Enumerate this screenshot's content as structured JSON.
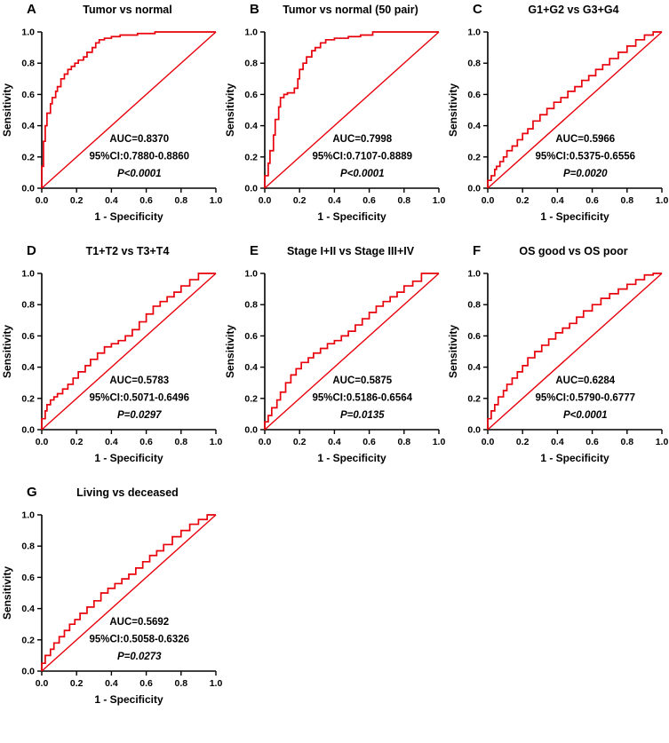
{
  "figure": {
    "name": "ROC curve figure, panels A-G",
    "style": {
      "curve_color": "#e8000b",
      "reference_color": "#e8000b",
      "axis_color": "#000000",
      "text_color": "#000000",
      "background": "#ffffff"
    },
    "axis": {
      "ticks": [
        "0.0",
        "0.2",
        "0.4",
        "0.6",
        "0.8",
        "1.0"
      ],
      "xlabel": "1 - Specificity",
      "ylabel": "Sensitivity",
      "xlim": [
        0,
        1
      ],
      "ylim": [
        0,
        1
      ],
      "grid": false
    }
  },
  "chart_data": [
    {
      "type": "line",
      "panel": "A",
      "title": "Tumor vs normal",
      "xlabel": "1 - Specificity",
      "ylabel": "Sensitivity",
      "xlim": [
        0,
        1
      ],
      "ylim": [
        0,
        1
      ],
      "annotations": {
        "auc": "AUC=0.8370",
        "ci": "95%CI:0.7880-0.8860",
        "p": "P<0.0001"
      },
      "series": [
        {
          "name": "ROC",
          "points": [
            [
              0,
              0
            ],
            [
              0.01,
              0.14
            ],
            [
              0.02,
              0.3
            ],
            [
              0.03,
              0.4
            ],
            [
              0.05,
              0.48
            ],
            [
              0.06,
              0.54
            ],
            [
              0.08,
              0.58
            ],
            [
              0.09,
              0.62
            ],
            [
              0.11,
              0.65
            ],
            [
              0.13,
              0.7
            ],
            [
              0.15,
              0.73
            ],
            [
              0.17,
              0.76
            ],
            [
              0.19,
              0.78
            ],
            [
              0.21,
              0.8
            ],
            [
              0.24,
              0.82
            ],
            [
              0.26,
              0.84
            ],
            [
              0.29,
              0.87
            ],
            [
              0.31,
              0.9
            ],
            [
              0.33,
              0.93
            ],
            [
              0.36,
              0.95
            ],
            [
              0.4,
              0.96
            ],
            [
              0.45,
              0.97
            ],
            [
              0.55,
              0.98
            ],
            [
              0.65,
              0.99
            ],
            [
              0.75,
              1
            ],
            [
              1,
              1
            ]
          ]
        },
        {
          "name": "reference",
          "points": [
            [
              0,
              0
            ],
            [
              1,
              1
            ]
          ]
        }
      ]
    },
    {
      "type": "line",
      "panel": "B",
      "title": "Tumor vs normal (50 pair)",
      "xlabel": "1 - Specificity",
      "ylabel": "Sensitivity",
      "xlim": [
        0,
        1
      ],
      "ylim": [
        0,
        1
      ],
      "annotations": {
        "auc": "AUC=0.7998",
        "ci": "95%CI:0.7107-0.8889",
        "p": "P<0.0001"
      },
      "series": [
        {
          "name": "ROC",
          "points": [
            [
              0,
              0
            ],
            [
              0.02,
              0.08
            ],
            [
              0.03,
              0.16
            ],
            [
              0.05,
              0.24
            ],
            [
              0.06,
              0.34
            ],
            [
              0.08,
              0.44
            ],
            [
              0.09,
              0.52
            ],
            [
              0.11,
              0.58
            ],
            [
              0.13,
              0.6
            ],
            [
              0.17,
              0.61
            ],
            [
              0.19,
              0.64
            ],
            [
              0.2,
              0.7
            ],
            [
              0.22,
              0.76
            ],
            [
              0.24,
              0.8
            ],
            [
              0.27,
              0.84
            ],
            [
              0.29,
              0.88
            ],
            [
              0.32,
              0.9
            ],
            [
              0.35,
              0.93
            ],
            [
              0.4,
              0.95
            ],
            [
              0.48,
              0.96
            ],
            [
              0.55,
              0.97
            ],
            [
              0.62,
              0.98
            ],
            [
              0.7,
              1
            ],
            [
              1,
              1
            ]
          ]
        },
        {
          "name": "reference",
          "points": [
            [
              0,
              0
            ],
            [
              1,
              1
            ]
          ]
        }
      ]
    },
    {
      "type": "line",
      "panel": "C",
      "title": "G1+G2 vs G3+G4",
      "xlabel": "1 - Specificity",
      "ylabel": "Sensitivity",
      "xlim": [
        0,
        1
      ],
      "ylim": [
        0,
        1
      ],
      "annotations": {
        "auc": "AUC=0.5966",
        "ci": "95%CI:0.5375-0.6556",
        "p": "P=0.0020"
      },
      "series": [
        {
          "name": "ROC",
          "points": [
            [
              0,
              0
            ],
            [
              0.02,
              0.05
            ],
            [
              0.04,
              0.08
            ],
            [
              0.05,
              0.12
            ],
            [
              0.07,
              0.14
            ],
            [
              0.09,
              0.17
            ],
            [
              0.11,
              0.2
            ],
            [
              0.14,
              0.24
            ],
            [
              0.17,
              0.27
            ],
            [
              0.2,
              0.31
            ],
            [
              0.23,
              0.35
            ],
            [
              0.26,
              0.38
            ],
            [
              0.3,
              0.43
            ],
            [
              0.34,
              0.47
            ],
            [
              0.38,
              0.51
            ],
            [
              0.42,
              0.55
            ],
            [
              0.46,
              0.58
            ],
            [
              0.5,
              0.62
            ],
            [
              0.54,
              0.65
            ],
            [
              0.58,
              0.69
            ],
            [
              0.62,
              0.72
            ],
            [
              0.66,
              0.76
            ],
            [
              0.7,
              0.79
            ],
            [
              0.75,
              0.83
            ],
            [
              0.8,
              0.87
            ],
            [
              0.85,
              0.91
            ],
            [
              0.9,
              0.95
            ],
            [
              0.95,
              0.98
            ],
            [
              1,
              1
            ]
          ]
        },
        {
          "name": "reference",
          "points": [
            [
              0,
              0
            ],
            [
              1,
              1
            ]
          ]
        }
      ]
    },
    {
      "type": "line",
      "panel": "D",
      "title": "T1+T2 vs T3+T4",
      "xlabel": "1 - Specificity",
      "ylabel": "Sensitivity",
      "xlim": [
        0,
        1
      ],
      "ylim": [
        0,
        1
      ],
      "annotations": {
        "auc": "AUC=0.5783",
        "ci": "95%CI:0.5071-0.6496",
        "p": "P=0.0297"
      },
      "series": [
        {
          "name": "ROC",
          "points": [
            [
              0,
              0
            ],
            [
              0.02,
              0.07
            ],
            [
              0.03,
              0.12
            ],
            [
              0.05,
              0.16
            ],
            [
              0.07,
              0.19
            ],
            [
              0.09,
              0.21
            ],
            [
              0.12,
              0.23
            ],
            [
              0.15,
              0.26
            ],
            [
              0.18,
              0.29
            ],
            [
              0.21,
              0.33
            ],
            [
              0.25,
              0.37
            ],
            [
              0.28,
              0.41
            ],
            [
              0.32,
              0.45
            ],
            [
              0.36,
              0.49
            ],
            [
              0.4,
              0.53
            ],
            [
              0.44,
              0.55
            ],
            [
              0.48,
              0.57
            ],
            [
              0.52,
              0.6
            ],
            [
              0.56,
              0.64
            ],
            [
              0.6,
              0.69
            ],
            [
              0.64,
              0.74
            ],
            [
              0.68,
              0.79
            ],
            [
              0.72,
              0.82
            ],
            [
              0.76,
              0.85
            ],
            [
              0.8,
              0.88
            ],
            [
              0.85,
              0.92
            ],
            [
              0.9,
              0.96
            ],
            [
              1,
              1
            ]
          ]
        },
        {
          "name": "reference",
          "points": [
            [
              0,
              0
            ],
            [
              1,
              1
            ]
          ]
        }
      ]
    },
    {
      "type": "line",
      "panel": "E",
      "title": "Stage I+II vs Stage III+IV",
      "xlabel": "1 - Specificity",
      "ylabel": "Sensitivity",
      "xlim": [
        0,
        1
      ],
      "ylim": [
        0,
        1
      ],
      "annotations": {
        "auc": "AUC=0.5875",
        "ci": "95%CI:0.5186-0.6564",
        "p": "P=0.0135"
      },
      "series": [
        {
          "name": "ROC",
          "points": [
            [
              0,
              0
            ],
            [
              0.02,
              0.05
            ],
            [
              0.04,
              0.09
            ],
            [
              0.07,
              0.14
            ],
            [
              0.09,
              0.19
            ],
            [
              0.12,
              0.24
            ],
            [
              0.15,
              0.3
            ],
            [
              0.18,
              0.35
            ],
            [
              0.21,
              0.39
            ],
            [
              0.25,
              0.43
            ],
            [
              0.28,
              0.46
            ],
            [
              0.32,
              0.49
            ],
            [
              0.36,
              0.52
            ],
            [
              0.4,
              0.55
            ],
            [
              0.44,
              0.57
            ],
            [
              0.48,
              0.6
            ],
            [
              0.52,
              0.63
            ],
            [
              0.56,
              0.67
            ],
            [
              0.6,
              0.71
            ],
            [
              0.64,
              0.75
            ],
            [
              0.68,
              0.79
            ],
            [
              0.72,
              0.82
            ],
            [
              0.76,
              0.85
            ],
            [
              0.8,
              0.88
            ],
            [
              0.85,
              0.92
            ],
            [
              0.9,
              0.95
            ],
            [
              1,
              1
            ]
          ]
        },
        {
          "name": "reference",
          "points": [
            [
              0,
              0
            ],
            [
              1,
              1
            ]
          ]
        }
      ]
    },
    {
      "type": "line",
      "panel": "F",
      "title": "OS good vs OS poor",
      "xlabel": "1 - Specificity",
      "ylabel": "Sensitivity",
      "xlim": [
        0,
        1
      ],
      "ylim": [
        0,
        1
      ],
      "annotations": {
        "auc": "AUC=0.6284",
        "ci": "95%CI:0.5790-0.6777",
        "p": "P<0.0001"
      },
      "series": [
        {
          "name": "ROC",
          "points": [
            [
              0,
              0
            ],
            [
              0.02,
              0.07
            ],
            [
              0.04,
              0.12
            ],
            [
              0.06,
              0.16
            ],
            [
              0.09,
              0.21
            ],
            [
              0.11,
              0.25
            ],
            [
              0.14,
              0.29
            ],
            [
              0.17,
              0.33
            ],
            [
              0.2,
              0.37
            ],
            [
              0.23,
              0.41
            ],
            [
              0.27,
              0.46
            ],
            [
              0.31,
              0.5
            ],
            [
              0.35,
              0.54
            ],
            [
              0.39,
              0.58
            ],
            [
              0.43,
              0.62
            ],
            [
              0.47,
              0.65
            ],
            [
              0.51,
              0.68
            ],
            [
              0.55,
              0.72
            ],
            [
              0.6,
              0.76
            ],
            [
              0.65,
              0.8
            ],
            [
              0.7,
              0.84
            ],
            [
              0.75,
              0.87
            ],
            [
              0.8,
              0.9
            ],
            [
              0.85,
              0.93
            ],
            [
              0.9,
              0.96
            ],
            [
              0.95,
              0.99
            ],
            [
              1,
              1
            ]
          ]
        },
        {
          "name": "reference",
          "points": [
            [
              0,
              0
            ],
            [
              1,
              1
            ]
          ]
        }
      ]
    },
    {
      "type": "line",
      "panel": "G",
      "title": "Living vs deceased",
      "xlabel": "1 - Specificity",
      "ylabel": "Sensitivity",
      "xlim": [
        0,
        1
      ],
      "ylim": [
        0,
        1
      ],
      "annotations": {
        "auc": "AUC=0.5692",
        "ci": "95%CI:0.5058-0.6326",
        "p": "P=0.0273"
      },
      "series": [
        {
          "name": "ROC",
          "points": [
            [
              0,
              0
            ],
            [
              0.02,
              0.05
            ],
            [
              0.05,
              0.1
            ],
            [
              0.07,
              0.14
            ],
            [
              0.1,
              0.18
            ],
            [
              0.13,
              0.22
            ],
            [
              0.16,
              0.26
            ],
            [
              0.19,
              0.3
            ],
            [
              0.22,
              0.33
            ],
            [
              0.26,
              0.37
            ],
            [
              0.3,
              0.41
            ],
            [
              0.34,
              0.45
            ],
            [
              0.38,
              0.5
            ],
            [
              0.42,
              0.53
            ],
            [
              0.46,
              0.56
            ],
            [
              0.5,
              0.59
            ],
            [
              0.54,
              0.62
            ],
            [
              0.58,
              0.66
            ],
            [
              0.62,
              0.7
            ],
            [
              0.66,
              0.74
            ],
            [
              0.7,
              0.77
            ],
            [
              0.75,
              0.81
            ],
            [
              0.8,
              0.86
            ],
            [
              0.85,
              0.9
            ],
            [
              0.9,
              0.94
            ],
            [
              0.95,
              0.97
            ],
            [
              1,
              1
            ]
          ]
        },
        {
          "name": "reference",
          "points": [
            [
              0,
              0
            ],
            [
              1,
              1
            ]
          ]
        }
      ]
    }
  ]
}
